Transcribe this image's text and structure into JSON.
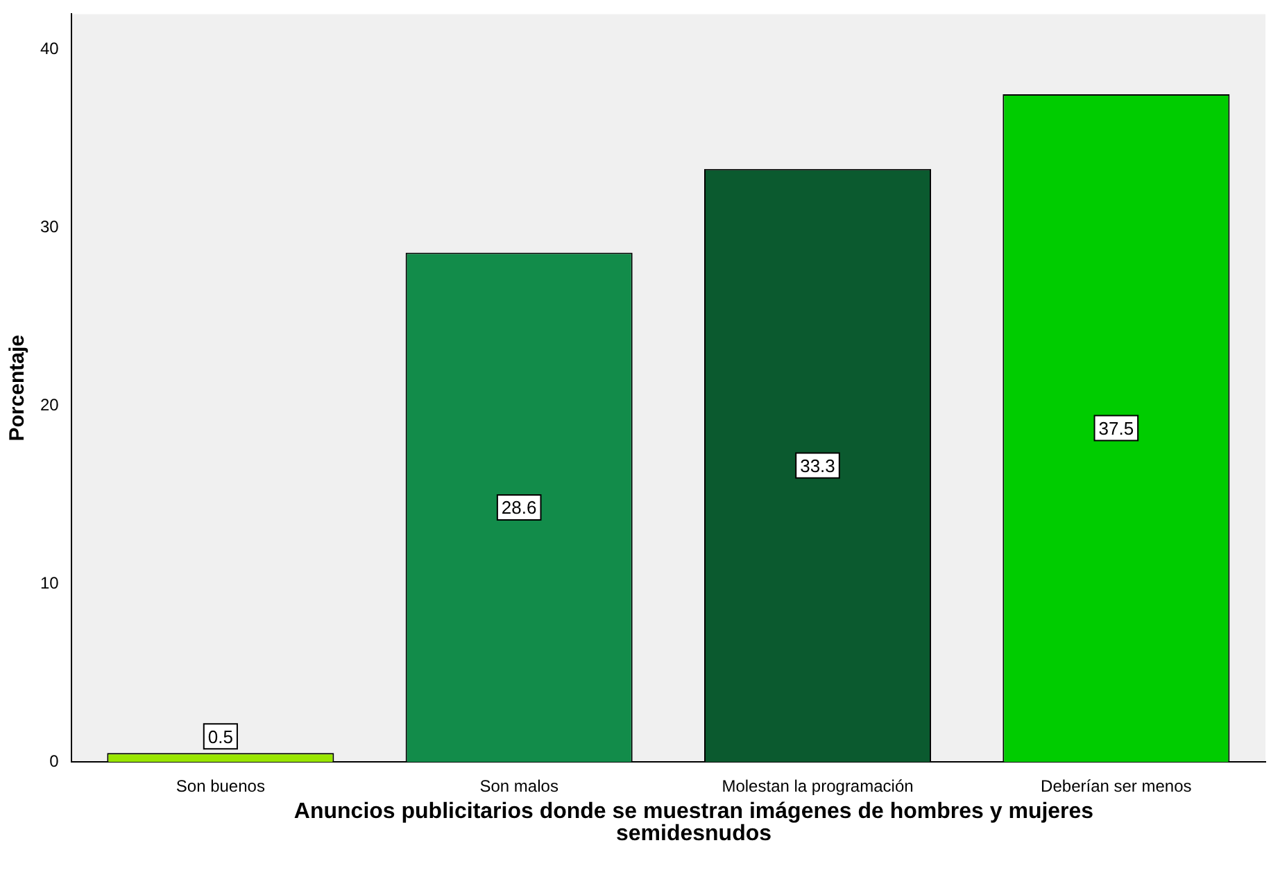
{
  "chart_data": {
    "type": "bar",
    "xlabel": "Anuncios publicitarios  donde se muestran imágenes de hombres y mujeres semidesnudos",
    "ylabel": "Porcentaje",
    "categories": [
      "Son buenos",
      "Son malos",
      "Molestan la programación",
      "Deberían ser menos"
    ],
    "values": [
      0.5,
      28.6,
      33.3,
      37.5
    ],
    "colors": [
      "#99e600",
      "#128c4a",
      "#0b5a2f",
      "#00cc00"
    ],
    "ylim": [
      0,
      42
    ],
    "yticks": [
      0,
      10,
      20,
      30,
      40
    ],
    "grid": false,
    "data_labels": true
  }
}
